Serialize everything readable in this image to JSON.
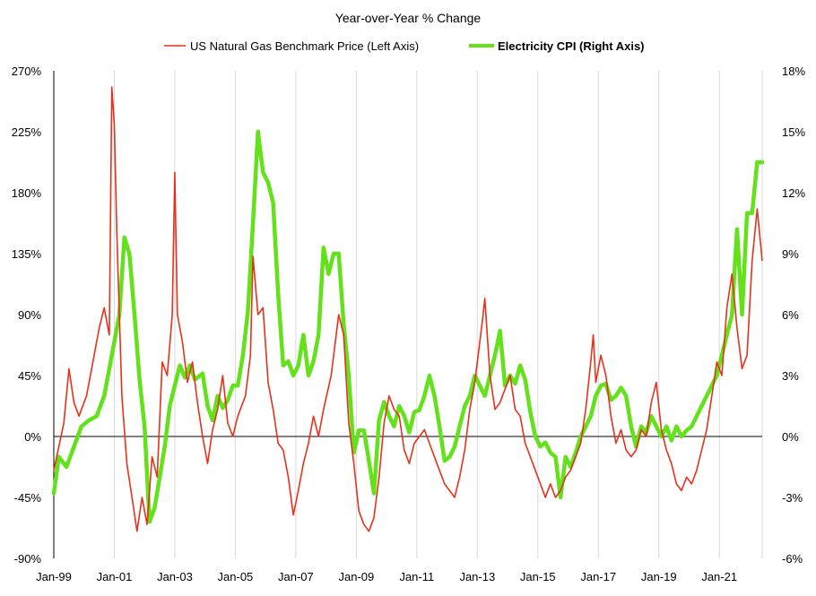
{
  "chart_data": {
    "type": "line",
    "title": "Year-over-Year % Change",
    "legend_position": "top",
    "grid": "vertical",
    "x_range": [
      "1999-01",
      "2022-06"
    ],
    "x_tick_labels": [
      "Jan-99",
      "Jan-01",
      "Jan-03",
      "Jan-05",
      "Jan-07",
      "Jan-09",
      "Jan-11",
      "Jan-13",
      "Jan-15",
      "Jan-17",
      "Jan-19",
      "Jan-21"
    ],
    "left_axis": {
      "ticks": [
        "270%",
        "225%",
        "180%",
        "135%",
        "90%",
        "45%",
        "0%",
        "-45%",
        "-90%"
      ],
      "ylim": [
        -90,
        270
      ],
      "unit": "%"
    },
    "right_axis": {
      "ticks": [
        "18%",
        "15%",
        "12%",
        "9%",
        "6%",
        "3%",
        "0%",
        "-3%",
        "-6%"
      ],
      "ylim": [
        -6,
        18
      ],
      "unit": "%"
    },
    "series": [
      {
        "name": "US Natural Gas Benchmark Price (Left Axis)",
        "axis": "left",
        "color": "#e8311c",
        "points": [
          [
            "1999-01",
            -25
          ],
          [
            "1999-05",
            10
          ],
          [
            "1999-07",
            50
          ],
          [
            "1999-09",
            25
          ],
          [
            "1999-11",
            15
          ],
          [
            "2000-02",
            30
          ],
          [
            "2000-05",
            60
          ],
          [
            "2000-07",
            80
          ],
          [
            "2000-09",
            95
          ],
          [
            "2000-11",
            75
          ],
          [
            "2000-12",
            258
          ],
          [
            "2001-01",
            230
          ],
          [
            "2001-02",
            150
          ],
          [
            "2001-04",
            30
          ],
          [
            "2001-06",
            -20
          ],
          [
            "2001-08",
            -45
          ],
          [
            "2001-10",
            -70
          ],
          [
            "2001-12",
            -45
          ],
          [
            "2002-02",
            -65
          ],
          [
            "2002-04",
            -15
          ],
          [
            "2002-06",
            -30
          ],
          [
            "2002-08",
            55
          ],
          [
            "2002-10",
            45
          ],
          [
            "2002-12",
            90
          ],
          [
            "2003-01",
            195
          ],
          [
            "2003-02",
            90
          ],
          [
            "2003-04",
            70
          ],
          [
            "2003-06",
            40
          ],
          [
            "2003-08",
            55
          ],
          [
            "2003-10",
            25
          ],
          [
            "2003-12",
            0
          ],
          [
            "2004-02",
            -20
          ],
          [
            "2004-04",
            5
          ],
          [
            "2004-06",
            20
          ],
          [
            "2004-08",
            45
          ],
          [
            "2004-10",
            10
          ],
          [
            "2004-12",
            0
          ],
          [
            "2005-02",
            15
          ],
          [
            "2005-05",
            30
          ],
          [
            "2005-07",
            60
          ],
          [
            "2005-08",
            133
          ],
          [
            "2005-10",
            90
          ],
          [
            "2005-12",
            95
          ],
          [
            "2006-02",
            40
          ],
          [
            "2006-04",
            20
          ],
          [
            "2006-06",
            -5
          ],
          [
            "2006-08",
            -10
          ],
          [
            "2006-10",
            -30
          ],
          [
            "2006-12",
            -58
          ],
          [
            "2007-02",
            -40
          ],
          [
            "2007-04",
            -20
          ],
          [
            "2007-06",
            -5
          ],
          [
            "2007-08",
            15
          ],
          [
            "2007-10",
            0
          ],
          [
            "2007-12",
            20
          ],
          [
            "2008-03",
            45
          ],
          [
            "2008-06",
            90
          ],
          [
            "2008-08",
            75
          ],
          [
            "2008-10",
            10
          ],
          [
            "2008-12",
            -20
          ],
          [
            "2009-02",
            -55
          ],
          [
            "2009-04",
            -65
          ],
          [
            "2009-06",
            -70
          ],
          [
            "2009-08",
            -60
          ],
          [
            "2009-10",
            -30
          ],
          [
            "2009-12",
            10
          ],
          [
            "2010-02",
            30
          ],
          [
            "2010-04",
            20
          ],
          [
            "2010-06",
            15
          ],
          [
            "2010-08",
            -10
          ],
          [
            "2010-10",
            -20
          ],
          [
            "2010-12",
            -5
          ],
          [
            "2011-02",
            0
          ],
          [
            "2011-04",
            5
          ],
          [
            "2011-06",
            -5
          ],
          [
            "2011-08",
            -15
          ],
          [
            "2011-10",
            -25
          ],
          [
            "2011-12",
            -35
          ],
          [
            "2012-02",
            -40
          ],
          [
            "2012-04",
            -45
          ],
          [
            "2012-06",
            -30
          ],
          [
            "2012-08",
            -10
          ],
          [
            "2012-10",
            20
          ],
          [
            "2012-12",
            40
          ],
          [
            "2013-03",
            85
          ],
          [
            "2013-04",
            102
          ],
          [
            "2013-06",
            45
          ],
          [
            "2013-08",
            20
          ],
          [
            "2013-10",
            25
          ],
          [
            "2013-12",
            35
          ],
          [
            "2014-02",
            45
          ],
          [
            "2014-04",
            20
          ],
          [
            "2014-06",
            15
          ],
          [
            "2014-08",
            -5
          ],
          [
            "2014-10",
            -15
          ],
          [
            "2014-12",
            -25
          ],
          [
            "2015-02",
            -35
          ],
          [
            "2015-04",
            -45
          ],
          [
            "2015-06",
            -35
          ],
          [
            "2015-08",
            -45
          ],
          [
            "2015-10",
            -40
          ],
          [
            "2015-12",
            -30
          ],
          [
            "2016-02",
            -25
          ],
          [
            "2016-04",
            -15
          ],
          [
            "2016-06",
            -5
          ],
          [
            "2016-08",
            20
          ],
          [
            "2016-10",
            55
          ],
          [
            "2016-11",
            75
          ],
          [
            "2016-12",
            40
          ],
          [
            "2017-02",
            60
          ],
          [
            "2017-04",
            45
          ],
          [
            "2017-06",
            15
          ],
          [
            "2017-08",
            -5
          ],
          [
            "2017-10",
            5
          ],
          [
            "2017-12",
            -10
          ],
          [
            "2018-02",
            -15
          ],
          [
            "2018-04",
            -10
          ],
          [
            "2018-06",
            5
          ],
          [
            "2018-08",
            0
          ],
          [
            "2018-10",
            25
          ],
          [
            "2018-12",
            40
          ],
          [
            "2019-02",
            5
          ],
          [
            "2019-04",
            -10
          ],
          [
            "2019-06",
            -20
          ],
          [
            "2019-08",
            -35
          ],
          [
            "2019-10",
            -40
          ],
          [
            "2019-12",
            -30
          ],
          [
            "2020-02",
            -35
          ],
          [
            "2020-04",
            -25
          ],
          [
            "2020-06",
            -10
          ],
          [
            "2020-08",
            5
          ],
          [
            "2020-10",
            30
          ],
          [
            "2020-12",
            55
          ],
          [
            "2021-02",
            45
          ],
          [
            "2021-04",
            95
          ],
          [
            "2021-06",
            120
          ],
          [
            "2021-08",
            80
          ],
          [
            "2021-10",
            50
          ],
          [
            "2021-12",
            60
          ],
          [
            "2022-02",
            130
          ],
          [
            "2022-04",
            168
          ],
          [
            "2022-06",
            130
          ]
        ]
      },
      {
        "name": "Electricity CPI (Right Axis)",
        "axis": "right",
        "color": "#63e21b",
        "points": [
          [
            "1999-01",
            -2.8
          ],
          [
            "1999-03",
            -1
          ],
          [
            "1999-06",
            -1.5
          ],
          [
            "1999-09",
            -0.5
          ],
          [
            "1999-12",
            0.5
          ],
          [
            "2000-03",
            0.8
          ],
          [
            "2000-06",
            1
          ],
          [
            "2000-09",
            2
          ],
          [
            "2000-12",
            4
          ],
          [
            "2001-03",
            6
          ],
          [
            "2001-05",
            9.8
          ],
          [
            "2001-07",
            9
          ],
          [
            "2001-09",
            6
          ],
          [
            "2001-11",
            2.8
          ],
          [
            "2002-01",
            0.5
          ],
          [
            "2002-03",
            -4.2
          ],
          [
            "2002-05",
            -3.5
          ],
          [
            "2002-07",
            -2
          ],
          [
            "2002-09",
            -0.5
          ],
          [
            "2002-11",
            1.5
          ],
          [
            "2003-01",
            2.5
          ],
          [
            "2003-03",
            3.5
          ],
          [
            "2003-05",
            2.9
          ],
          [
            "2003-07",
            3.5
          ],
          [
            "2003-09",
            2.8
          ],
          [
            "2003-11",
            3
          ],
          [
            "2003-12",
            3.1
          ],
          [
            "2004-02",
            1.5
          ],
          [
            "2004-04",
            0.8
          ],
          [
            "2004-06",
            2
          ],
          [
            "2004-08",
            1.4
          ],
          [
            "2004-10",
            1.8
          ],
          [
            "2004-12",
            2.5
          ],
          [
            "2005-02",
            2.5
          ],
          [
            "2005-04",
            4
          ],
          [
            "2005-06",
            6.2
          ],
          [
            "2005-08",
            10.5
          ],
          [
            "2005-10",
            15
          ],
          [
            "2005-12",
            13
          ],
          [
            "2006-02",
            12.5
          ],
          [
            "2006-04",
            11.5
          ],
          [
            "2006-06",
            7
          ],
          [
            "2006-08",
            3.5
          ],
          [
            "2006-10",
            3.7
          ],
          [
            "2006-12",
            3
          ],
          [
            "2007-02",
            3.5
          ],
          [
            "2007-04",
            5
          ],
          [
            "2007-06",
            3
          ],
          [
            "2007-08",
            3.7
          ],
          [
            "2007-10",
            5
          ],
          [
            "2007-12",
            9.3
          ],
          [
            "2008-02",
            8
          ],
          [
            "2008-04",
            9
          ],
          [
            "2008-06",
            9
          ],
          [
            "2008-08",
            5.5
          ],
          [
            "2008-10",
            3
          ],
          [
            "2008-12",
            -0.8
          ],
          [
            "2009-02",
            0.3
          ],
          [
            "2009-04",
            0.3
          ],
          [
            "2009-06",
            -1.2
          ],
          [
            "2009-08",
            -2.8
          ],
          [
            "2009-10",
            0.8
          ],
          [
            "2009-12",
            1.7
          ],
          [
            "2010-02",
            1
          ],
          [
            "2010-04",
            0.5
          ],
          [
            "2010-06",
            1.5
          ],
          [
            "2010-08",
            1
          ],
          [
            "2010-10",
            0.2
          ],
          [
            "2010-12",
            1.2
          ],
          [
            "2011-02",
            1.3
          ],
          [
            "2011-04",
            2
          ],
          [
            "2011-06",
            3
          ],
          [
            "2011-08",
            2
          ],
          [
            "2011-10",
            0.5
          ],
          [
            "2011-12",
            -1.2
          ],
          [
            "2012-02",
            -1
          ],
          [
            "2012-04",
            -0.5
          ],
          [
            "2012-06",
            0.5
          ],
          [
            "2012-08",
            1.5
          ],
          [
            "2012-10",
            2
          ],
          [
            "2012-12",
            3
          ],
          [
            "2013-02",
            2.5
          ],
          [
            "2013-04",
            2
          ],
          [
            "2013-06",
            3
          ],
          [
            "2013-08",
            4
          ],
          [
            "2013-10",
            5.2
          ],
          [
            "2013-12",
            2.5
          ],
          [
            "2014-02",
            3
          ],
          [
            "2014-04",
            2.6
          ],
          [
            "2014-06",
            3.5
          ],
          [
            "2014-08",
            2.8
          ],
          [
            "2014-10",
            1.2
          ],
          [
            "2014-12",
            0
          ],
          [
            "2015-02",
            -0.5
          ],
          [
            "2015-04",
            -0.3
          ],
          [
            "2015-06",
            -0.8
          ],
          [
            "2015-08",
            -1
          ],
          [
            "2015-10",
            -3
          ],
          [
            "2015-12",
            -1
          ],
          [
            "2016-02",
            -1.5
          ],
          [
            "2016-04",
            -0.8
          ],
          [
            "2016-06",
            0
          ],
          [
            "2016-08",
            0.5
          ],
          [
            "2016-10",
            1
          ],
          [
            "2016-12",
            2
          ],
          [
            "2017-02",
            2.5
          ],
          [
            "2017-04",
            2.6
          ],
          [
            "2017-06",
            1.8
          ],
          [
            "2017-08",
            2
          ],
          [
            "2017-10",
            2.4
          ],
          [
            "2017-12",
            2
          ],
          [
            "2018-02",
            0.5
          ],
          [
            "2018-04",
            -0.5
          ],
          [
            "2018-06",
            0.5
          ],
          [
            "2018-08",
            0.2
          ],
          [
            "2018-10",
            1
          ],
          [
            "2018-12",
            0.5
          ],
          [
            "2019-02",
            0
          ],
          [
            "2019-04",
            0.5
          ],
          [
            "2019-06",
            -0.2
          ],
          [
            "2019-08",
            0.5
          ],
          [
            "2019-10",
            0
          ],
          [
            "2019-12",
            0.3
          ],
          [
            "2020-02",
            0.5
          ],
          [
            "2020-04",
            1
          ],
          [
            "2020-06",
            1.5
          ],
          [
            "2020-08",
            2
          ],
          [
            "2020-10",
            2.5
          ],
          [
            "2020-12",
            3
          ],
          [
            "2021-02",
            4
          ],
          [
            "2021-04",
            5
          ],
          [
            "2021-06",
            6
          ],
          [
            "2021-08",
            10.2
          ],
          [
            "2021-10",
            6
          ],
          [
            "2021-12",
            11
          ],
          [
            "2022-02",
            11
          ],
          [
            "2022-04",
            13.5
          ],
          [
            "2022-06",
            13.5
          ]
        ]
      }
    ]
  }
}
